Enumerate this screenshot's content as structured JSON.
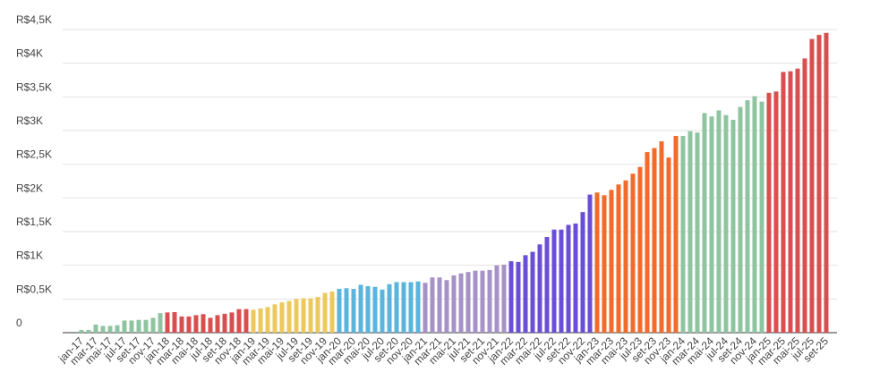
{
  "chart_data": {
    "type": "bar",
    "categories": [
      "jan-17",
      null,
      "mar-17",
      null,
      "mai-17",
      null,
      "jul-17",
      null,
      "set-17",
      null,
      "nov-17",
      null,
      "jan-18",
      null,
      "mar-18",
      null,
      "mai-18",
      null,
      "jul-18",
      null,
      "set-18",
      null,
      "nov-18",
      null,
      "jan-19",
      null,
      "mar-19",
      null,
      "mai-19",
      null,
      "jul-19",
      null,
      "set-19",
      null,
      "nov-19",
      null,
      "jan-20",
      null,
      "mar-20",
      null,
      "mai-20",
      null,
      "jul-20",
      null,
      "set-20",
      null,
      "nov-20",
      null,
      "jan-21",
      null,
      "mar-21",
      null,
      "mai-21",
      null,
      "jul-21",
      null,
      "set-21",
      null,
      "nov-21",
      null,
      "jan-22",
      null,
      "mar-22",
      null,
      "mai-22",
      null,
      "jul-22",
      null,
      "set-22",
      null,
      "nov-22",
      null,
      "jan-23",
      null,
      "mar-23",
      null,
      "mai-23",
      null,
      "jul-23",
      null,
      "set-23",
      null,
      "nov-23",
      null,
      "jan-24",
      null,
      "mar-24",
      null,
      "mai-24",
      null,
      "jul-24",
      null,
      "set-24",
      null,
      "nov-24",
      null,
      "jan-25",
      null,
      "mar-25",
      null,
      "mai-25",
      null,
      "jul-25",
      null,
      "set-25"
    ],
    "values": [
      40,
      40,
      120,
      100,
      100,
      110,
      180,
      180,
      190,
      190,
      220,
      290,
      300,
      305,
      240,
      240,
      260,
      275,
      220,
      260,
      280,
      300,
      350,
      350,
      340,
      360,
      380,
      420,
      450,
      470,
      500,
      510,
      510,
      530,
      590,
      610,
      650,
      660,
      650,
      710,
      690,
      680,
      640,
      720,
      750,
      750,
      750,
      760,
      740,
      820,
      820,
      780,
      850,
      880,
      900,
      920,
      920,
      930,
      1000,
      1010,
      1060,
      1050,
      1150,
      1200,
      1310,
      1420,
      1530,
      1530,
      1600,
      1620,
      1790,
      2050,
      2080,
      2040,
      2120,
      2200,
      2260,
      2360,
      2460,
      2680,
      2740,
      2840,
      2600,
      2920,
      2920,
      2990,
      2970,
      3260,
      3210,
      3300,
      3230,
      3160,
      3350,
      3450,
      3510,
      3430,
      3560,
      3580,
      3870,
      3880,
      3920,
      4070,
      4360,
      4420,
      4450
    ],
    "colors": [
      "#8fc4a0",
      "#8fc4a0",
      "#8fc4a0",
      "#8fc4a0",
      "#8fc4a0",
      "#8fc4a0",
      "#8fc4a0",
      "#8fc4a0",
      "#8fc4a0",
      "#8fc4a0",
      "#8fc4a0",
      "#8fc4a0",
      "#d94f4f",
      "#d94f4f",
      "#d94f4f",
      "#d94f4f",
      "#d94f4f",
      "#d94f4f",
      "#d94f4f",
      "#d94f4f",
      "#d94f4f",
      "#d94f4f",
      "#d94f4f",
      "#d94f4f",
      "#edc95c",
      "#edc95c",
      "#edc95c",
      "#edc95c",
      "#edc95c",
      "#edc95c",
      "#edc95c",
      "#edc95c",
      "#edc95c",
      "#edc95c",
      "#edc95c",
      "#edc95c",
      "#5ab4dc",
      "#5ab4dc",
      "#5ab4dc",
      "#5ab4dc",
      "#5ab4dc",
      "#5ab4dc",
      "#5ab4dc",
      "#5ab4dc",
      "#5ab4dc",
      "#5ab4dc",
      "#5ab4dc",
      "#5ab4dc",
      "#a792c7",
      "#a792c7",
      "#a792c7",
      "#a792c7",
      "#a792c7",
      "#a792c7",
      "#a792c7",
      "#a792c7",
      "#a792c7",
      "#a792c7",
      "#a792c7",
      "#a792c7",
      "#6a4fd6",
      "#6a4fd6",
      "#6a4fd6",
      "#6a4fd6",
      "#6a4fd6",
      "#6a4fd6",
      "#6a4fd6",
      "#6a4fd6",
      "#6a4fd6",
      "#6a4fd6",
      "#6a4fd6",
      "#6a4fd6",
      "#f26b2a",
      "#f26b2a",
      "#f26b2a",
      "#f26b2a",
      "#f26b2a",
      "#f26b2a",
      "#f26b2a",
      "#f26b2a",
      "#f26b2a",
      "#f26b2a",
      "#f26b2a",
      "#f26b2a",
      "#8fc4a0",
      "#8fc4a0",
      "#8fc4a0",
      "#8fc4a0",
      "#8fc4a0",
      "#8fc4a0",
      "#8fc4a0",
      "#8fc4a0",
      "#8fc4a0",
      "#8fc4a0",
      "#8fc4a0",
      "#8fc4a0",
      "#d94f4f",
      "#d94f4f",
      "#d94f4f",
      "#d94f4f",
      "#d94f4f",
      "#d94f4f",
      "#d94f4f",
      "#d94f4f",
      "#d94f4f"
    ],
    "ylim": [
      0,
      4500
    ],
    "yticks": [
      0,
      {
        "value": 500,
        "label": "R$0,5K"
      },
      {
        "value": 1000,
        "label": "R$1K"
      },
      {
        "value": 1500,
        "label": "R$1,5K"
      },
      {
        "value": 2000,
        "label": "R$2K"
      },
      {
        "value": 2500,
        "label": "R$2,5K"
      },
      {
        "value": 3000,
        "label": "R$3K"
      },
      {
        "value": 3500,
        "label": "R$3,5K"
      },
      {
        "value": 4000,
        "label": "R$4K"
      },
      {
        "value": 4500,
        "label": "R$4,5K"
      }
    ],
    "grid": true
  }
}
